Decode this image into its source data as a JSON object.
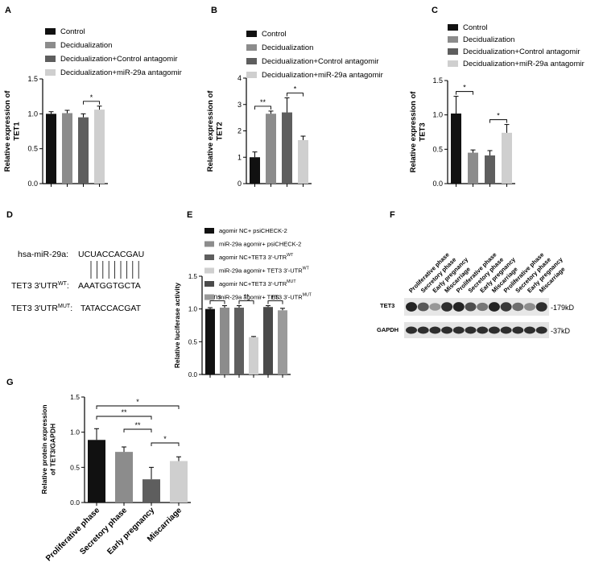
{
  "panel_letters": {
    "A": "A",
    "B": "B",
    "C": "C",
    "D": "D",
    "E": "E",
    "F": "F",
    "G": "G"
  },
  "colors": {
    "black": "#111111",
    "gray_mid": "#8c8c8c",
    "gray_dark": "#5e5e5e",
    "gray_light": "#cfcfcf",
    "gray_darker": "#4a4a4a",
    "gray_med2": "#9a9a9a"
  },
  "chart_data": [
    {
      "id": "A",
      "type": "bar",
      "categories": [
        "Control",
        "Decidualization",
        "Decidualization+Control antagomir",
        "Decidualization+miR-29a antagomir"
      ],
      "values": [
        1.0,
        1.01,
        0.95,
        1.06
      ],
      "errors": [
        0.03,
        0.04,
        0.05,
        0.05
      ],
      "legend": [
        "Control",
        "Decidualization",
        "Decidualization+Control antagomir",
        "Decidualization+miR-29a antagomir"
      ],
      "ylabel": "Relative expression of TET1",
      "ylabel_lines": [
        "Relative expression of",
        "TET1"
      ],
      "ylim": [
        0,
        1.5
      ],
      "yticks": [
        "0.0",
        "0.5",
        "1.0",
        "1.5"
      ],
      "significance": [
        {
          "from": 2,
          "to": 3,
          "label": "*"
        }
      ]
    },
    {
      "id": "B",
      "type": "bar",
      "categories": [
        "Control",
        "Decidualization",
        "Decidualization+Control antagomir",
        "Decidualization+miR-29a antagomir"
      ],
      "values": [
        1.0,
        2.65,
        2.7,
        1.65
      ],
      "errors": [
        0.2,
        0.1,
        0.55,
        0.15
      ],
      "legend": [
        "Control",
        "Decidualization",
        "Decidualization+Control antagomir",
        "Decidualization+miR-29a antagomir"
      ],
      "ylabel": "Relative expression of TET2",
      "ylabel_lines": [
        "Relative expression of",
        "TET2"
      ],
      "ylim": [
        0,
        4
      ],
      "yticks": [
        "0",
        "1",
        "2",
        "3",
        "4"
      ],
      "significance": [
        {
          "from": 0,
          "to": 1,
          "label": "**"
        },
        {
          "from": 2,
          "to": 3,
          "label": "*"
        }
      ]
    },
    {
      "id": "C",
      "type": "bar",
      "categories": [
        "Control",
        "Decidualization",
        "Decidualization+Control antagomir",
        "Decidualization+miR-29a antagomir"
      ],
      "values": [
        1.02,
        0.45,
        0.41,
        0.74
      ],
      "errors": [
        0.25,
        0.04,
        0.07,
        0.12
      ],
      "legend": [
        "Control",
        "Decidualization",
        "Decidualization+Control antagomir",
        "Decidualization+miR-29a antagomir"
      ],
      "ylabel": "Relative expression of TET3",
      "ylabel_lines": [
        "Relative expression of",
        "TET3"
      ],
      "ylim": [
        0,
        1.5
      ],
      "yticks": [
        "0.0",
        "0.5",
        "1.0",
        "1.5"
      ],
      "significance": [
        {
          "from": 0,
          "to": 1,
          "label": "*"
        },
        {
          "from": 2,
          "to": 3,
          "label": "*"
        }
      ]
    },
    {
      "id": "E",
      "type": "bar",
      "categories": [
        "agomir NC+ psiCHECK-2",
        "miR-29a agomir+ psiCHECK-2",
        "agomir NC+TET3 3'-UTR WT",
        "miR-29a agomir+ TET3 3'-UTR WT",
        "agomir NC+TET3 3'-UTR MUT",
        "miR-29a agomir+ TET3 3'-UTR MUT"
      ],
      "values": [
        1.0,
        1.02,
        1.02,
        0.57,
        1.03,
        0.98
      ],
      "errors": [
        0.02,
        0.03,
        0.03,
        0.01,
        0.02,
        0.03
      ],
      "legend": [
        {
          "text": "agomir NC+ psiCHECK-2",
          "sup": ""
        },
        {
          "text": "miR-29a agomir+ psiCHECK-2",
          "sup": ""
        },
        {
          "text": "agomir NC+TET3 3'-UTR",
          "sup": "WT"
        },
        {
          "text": "miR-29a agomir+ TET3 3'-UTR",
          "sup": "WT"
        },
        {
          "text": "agomir NC+TET3 3'-UTR",
          "sup": "MUT"
        },
        {
          "text": "miR-29a agomir+ TET3 3'-UTR",
          "sup": "MUT"
        }
      ],
      "ylabel": "Relative luciferase activity",
      "ylim": [
        0,
        1.5
      ],
      "yticks": [
        "0.0",
        "0.5",
        "1.0",
        "1.5"
      ],
      "significance": [
        {
          "from": 0,
          "to": 1,
          "label": "ns"
        },
        {
          "from": 2,
          "to": 3,
          "label": "**"
        },
        {
          "from": 4,
          "to": 5,
          "label": "ns"
        }
      ]
    },
    {
      "id": "G",
      "type": "bar",
      "categories": [
        "Proliferative phase",
        "Secretory phase",
        "Early pregnancy",
        "Miscarriage"
      ],
      "values": [
        0.89,
        0.72,
        0.33,
        0.59
      ],
      "errors": [
        0.16,
        0.07,
        0.17,
        0.06
      ],
      "ylabel": "Relative protein expression of TET3/GAPDH",
      "ylabel_lines": [
        "Relative protein expression",
        "of TET3/GAPDH"
      ],
      "ylim": [
        0,
        1.5
      ],
      "yticks": [
        "0.0",
        "0.5",
        "1.0",
        "1.5"
      ],
      "significance": [
        {
          "from": 0,
          "to": 3,
          "label": "*"
        },
        {
          "from": 0,
          "to": 2,
          "label": "**"
        },
        {
          "from": 1,
          "to": 2,
          "label": "**"
        },
        {
          "from": 2,
          "to": 3,
          "label": "*"
        }
      ]
    }
  ],
  "panel_d": {
    "mir_label": "hsa-miR-29a:",
    "mir_seq": "UCUACCACGAU",
    "wt_label": "TET3 3'UTR",
    "wt_sup": "WT",
    "wt_colon": ":",
    "wt_seq": "AAATGGTGCTA",
    "mut_label": "TET3 3'UTR",
    "mut_sup": "MUT",
    "mut_colon": ":",
    "mut_seq": "TATACCACGAT",
    "pairing_lines": 9
  },
  "panel_f": {
    "lanes": [
      "Proliferative phase",
      "Secretory phase",
      "Early pregnancy",
      "Miscarriage",
      "Proliferative phase",
      "Secretory phase",
      "Early pregnancy",
      "Miscarriage",
      "Proliferative phase",
      "Secretory phase",
      "Early pregnancy",
      "Miscarriage"
    ],
    "rows": [
      {
        "label": "TET3",
        "size": "-179kD",
        "intensity": [
          0.95,
          0.7,
          0.4,
          0.9,
          0.95,
          0.75,
          0.55,
          0.95,
          0.85,
          0.6,
          0.45,
          0.9
        ]
      },
      {
        "label": "GAPDH",
        "size": "-37kD",
        "intensity": [
          0.9,
          0.9,
          0.9,
          0.9,
          0.9,
          0.9,
          0.9,
          0.9,
          0.9,
          0.9,
          0.9,
          0.9
        ]
      }
    ]
  }
}
